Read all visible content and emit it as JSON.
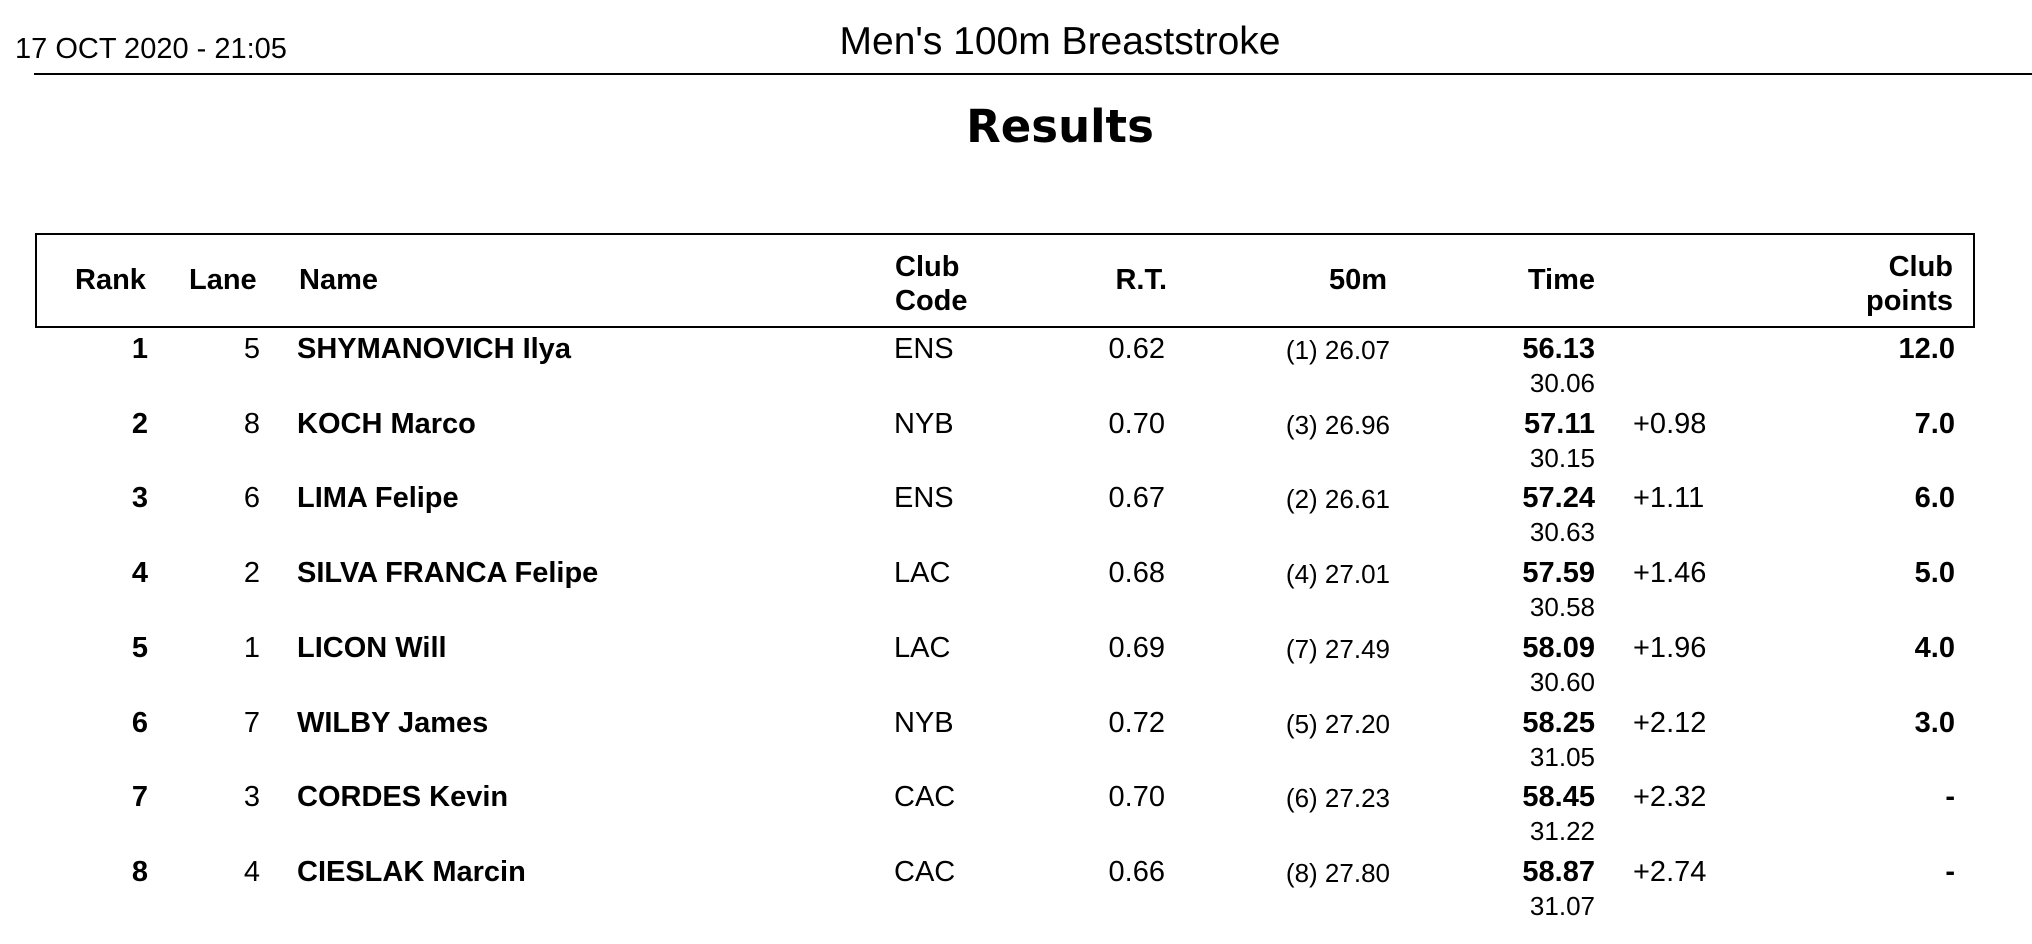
{
  "header": {
    "date": "17 OCT 2020 - 21:05",
    "event": "Men's 100m Breaststroke",
    "subtitle": "Results"
  },
  "columns": {
    "rank": "Rank",
    "lane": "Lane",
    "name": "Name",
    "club_code_1": "Club",
    "club_code_2": "Code",
    "rt": "R.T.",
    "fifty": "50m",
    "time": "Time",
    "club_points_1": "Club",
    "club_points_2": "points"
  },
  "rows": [
    {
      "rank": "1",
      "lane": "5",
      "name": "SHYMANOVICH Ilya",
      "club": "ENS",
      "rt": "0.62",
      "fifty": "(1) 26.07",
      "time": "56.13",
      "split": "30.06",
      "diff": "",
      "points": "12.0"
    },
    {
      "rank": "2",
      "lane": "8",
      "name": "KOCH Marco",
      "club": "NYB",
      "rt": "0.70",
      "fifty": "(3) 26.96",
      "time": "57.11",
      "split": "30.15",
      "diff": "+0.98",
      "points": "7.0"
    },
    {
      "rank": "3",
      "lane": "6",
      "name": "LIMA Felipe",
      "club": "ENS",
      "rt": "0.67",
      "fifty": "(2) 26.61",
      "time": "57.24",
      "split": "30.63",
      "diff": "+1.11",
      "points": "6.0"
    },
    {
      "rank": "4",
      "lane": "2",
      "name": "SILVA FRANCA Felipe",
      "club": "LAC",
      "rt": "0.68",
      "fifty": "(4) 27.01",
      "time": "57.59",
      "split": "30.58",
      "diff": "+1.46",
      "points": "5.0"
    },
    {
      "rank": "5",
      "lane": "1",
      "name": "LICON Will",
      "club": "LAC",
      "rt": "0.69",
      "fifty": "(7) 27.49",
      "time": "58.09",
      "split": "30.60",
      "diff": "+1.96",
      "points": "4.0"
    },
    {
      "rank": "6",
      "lane": "7",
      "name": "WILBY James",
      "club": "NYB",
      "rt": "0.72",
      "fifty": "(5) 27.20",
      "time": "58.25",
      "split": "31.05",
      "diff": "+2.12",
      "points": "3.0"
    },
    {
      "rank": "7",
      "lane": "3",
      "name": "CORDES Kevin",
      "club": "CAC",
      "rt": "0.70",
      "fifty": "(6) 27.23",
      "time": "58.45",
      "split": "31.22",
      "diff": "+2.32",
      "points": "-"
    },
    {
      "rank": "8",
      "lane": "4",
      "name": "CIESLAK Marcin",
      "club": "CAC",
      "rt": "0.66",
      "fifty": "(8) 27.80",
      "time": "58.87",
      "split": "31.07",
      "diff": "+2.74",
      "points": "-"
    }
  ]
}
